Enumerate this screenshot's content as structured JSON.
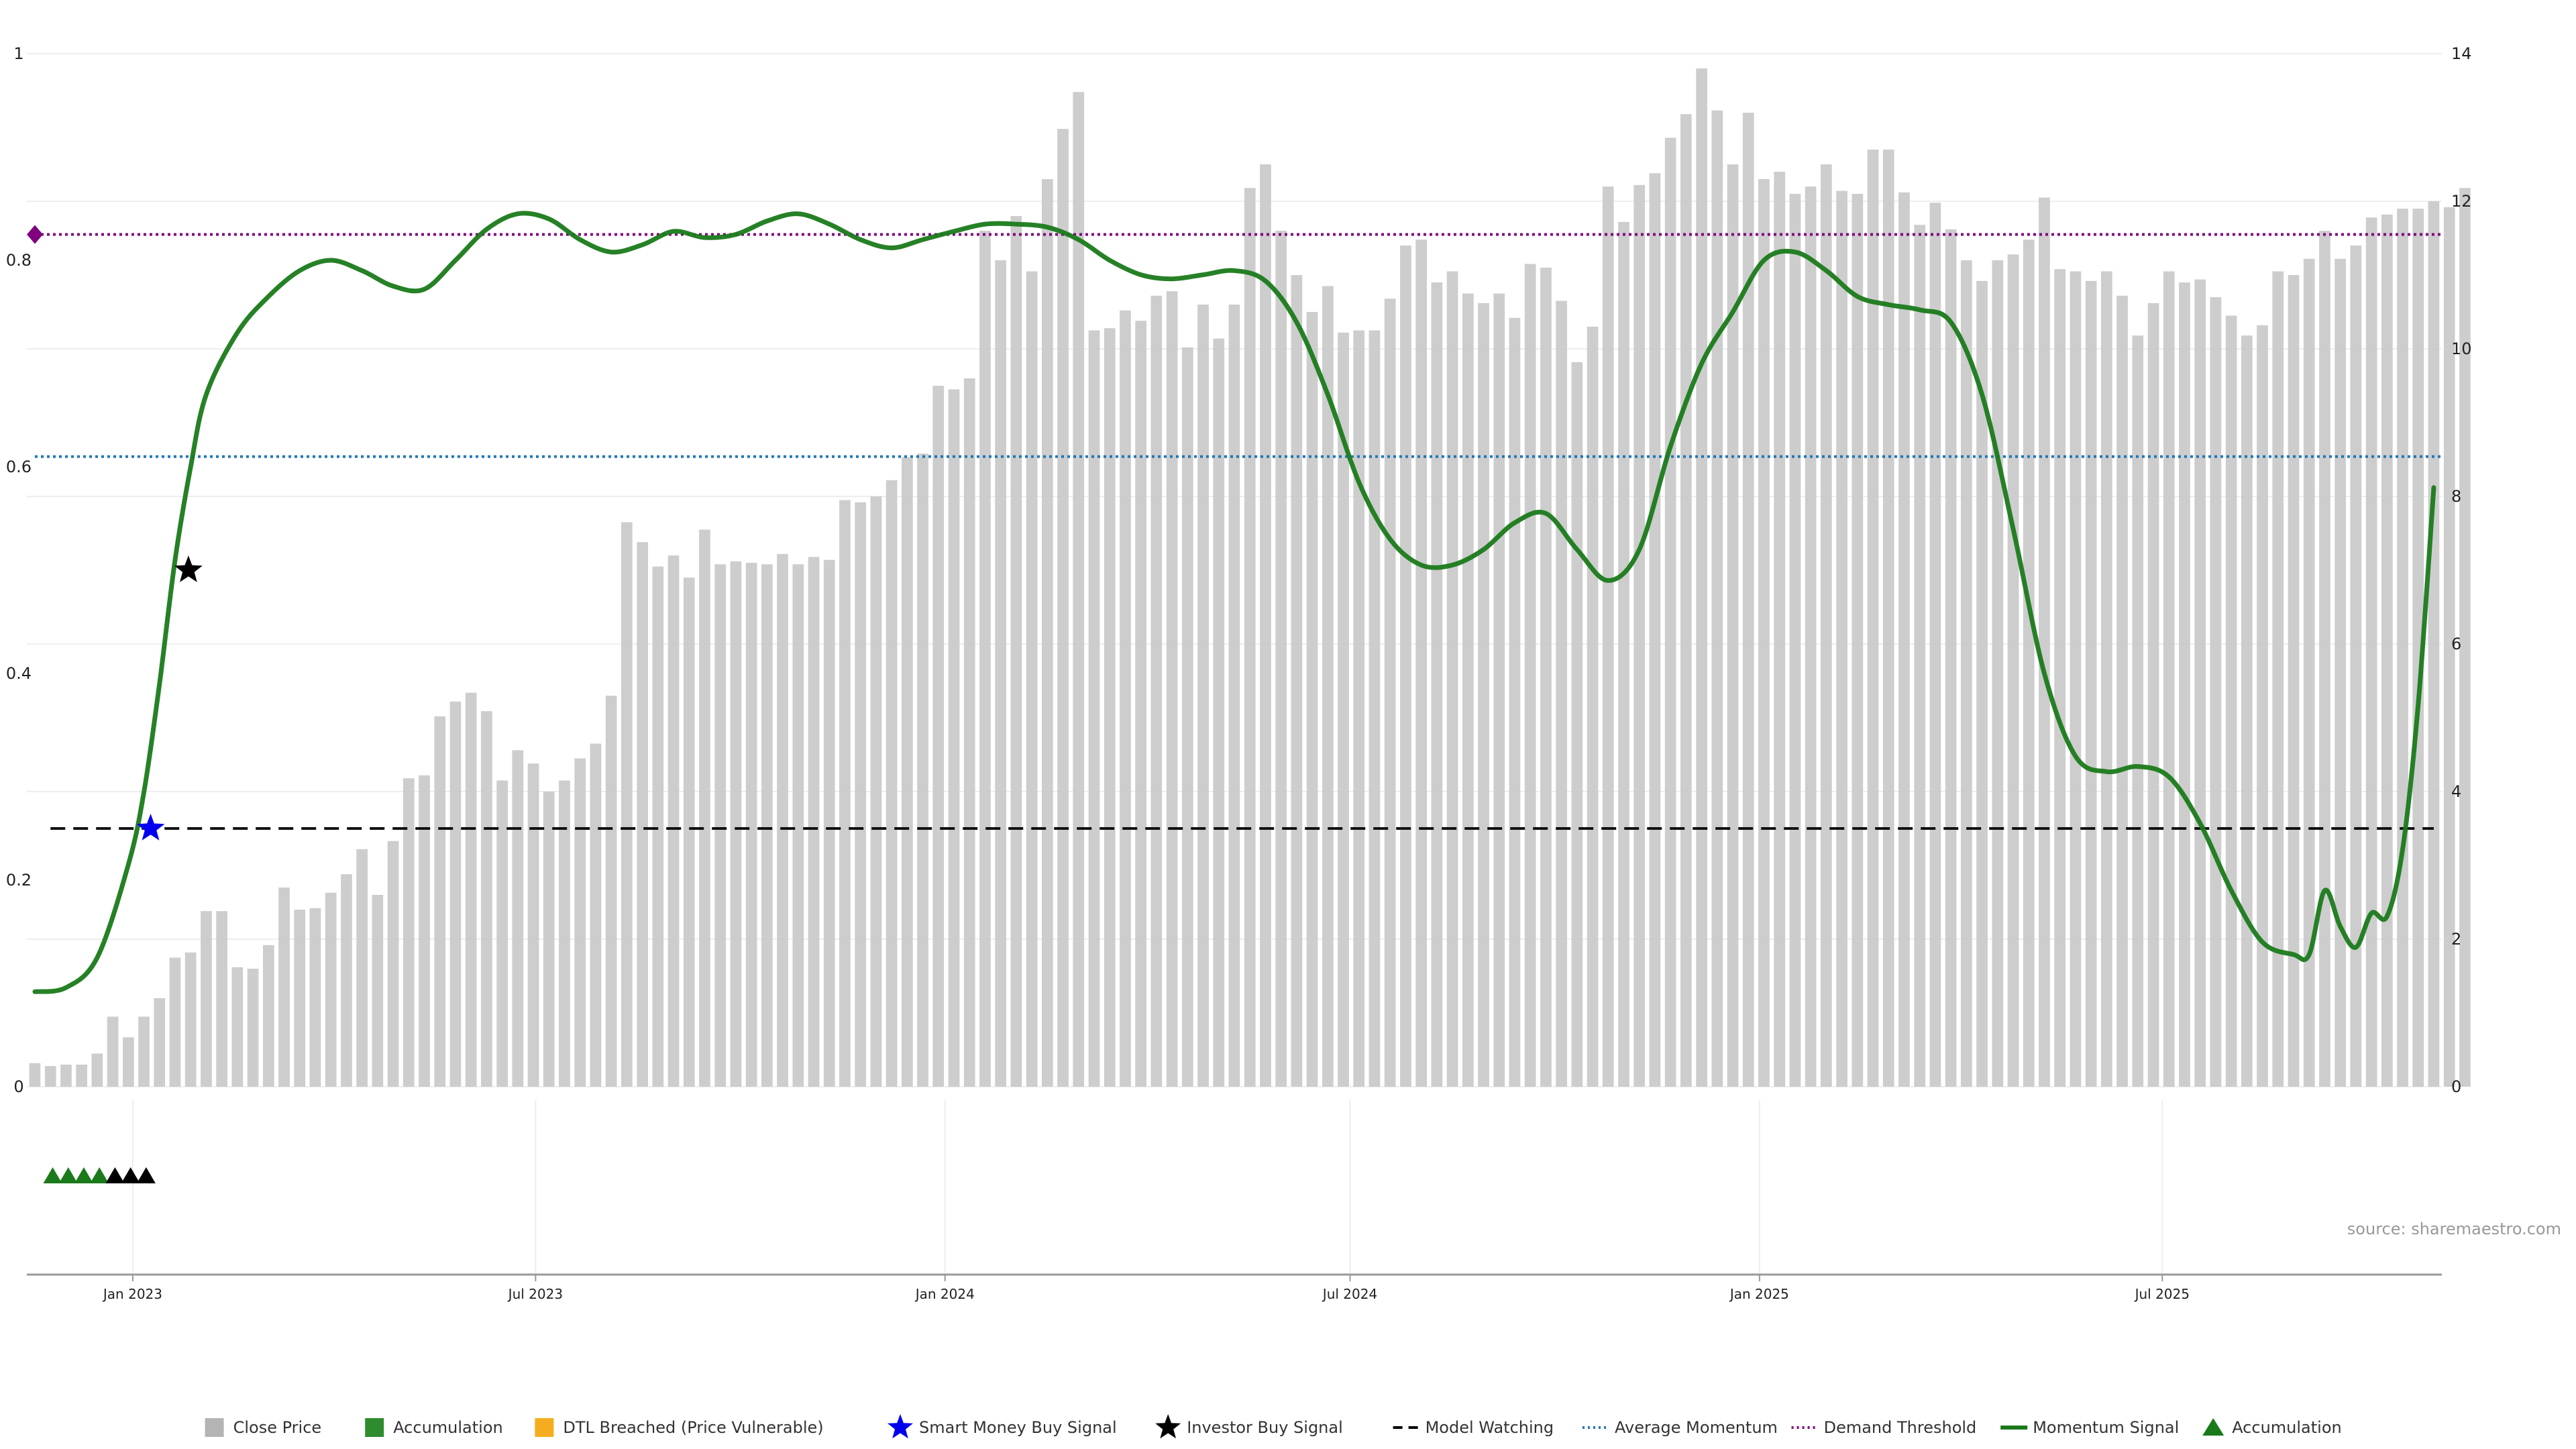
{
  "chart_data": {
    "type": "bar",
    "source_note": "source: sharemaestro.com",
    "left_axis": {
      "ylim": [
        0,
        1
      ],
      "ticks": [
        "0",
        "0.2",
        "0.4",
        "0.6",
        "0.8",
        "1"
      ],
      "tick_values": [
        0,
        0.2,
        0.4,
        0.6,
        0.8,
        1
      ]
    },
    "right_axis": {
      "ylim": [
        0,
        14
      ],
      "ticks": [
        "0",
        "2",
        "4",
        "6",
        "8",
        "10",
        "12",
        "14"
      ],
      "tick_values": [
        0,
        2,
        4,
        6,
        8,
        10,
        12,
        14
      ]
    },
    "x_axis": {
      "start": "2022-11-18",
      "end": "2025-10-31",
      "ticks": [
        {
          "label": "Jan 2023",
          "date": "2023-01-01"
        },
        {
          "label": "Jul 2023",
          "date": "2023-07-01"
        },
        {
          "label": "Jan 2024",
          "date": "2024-01-01"
        },
        {
          "label": "Jul 2024",
          "date": "2024-07-01"
        },
        {
          "label": "Jan 2025",
          "date": "2025-01-01"
        },
        {
          "label": "Jul 2025",
          "date": "2025-07-01"
        }
      ]
    },
    "bar_colors": {
      "gray": "#c8c8c8",
      "green": "#2e8b2e",
      "orange": "#ffd280"
    },
    "close_price": {
      "start_date": "2022-11-18",
      "interval_days": 7,
      "values": [
        0.32,
        0.28,
        0.3,
        0.3,
        0.45,
        0.95,
        0.67,
        0.95,
        1.2,
        1.75,
        1.82,
        2.38,
        2.38,
        1.62,
        1.6,
        1.92,
        2.7,
        2.4,
        2.42,
        2.63,
        2.88,
        3.22,
        2.6,
        3.33,
        4.18,
        4.22,
        5.02,
        5.22,
        5.34,
        5.09,
        4.15,
        4.56,
        4.38,
        4.0,
        4.15,
        4.45,
        4.65,
        5.3,
        7.65,
        7.38,
        7.05,
        7.2,
        6.9,
        7.55,
        7.08,
        7.12,
        7.1,
        7.08,
        7.22,
        7.08,
        7.18,
        7.14,
        7.95,
        7.92,
        8.0,
        8.22,
        8.53,
        8.58,
        9.5,
        9.45,
        9.6,
        11.6,
        11.2,
        11.8,
        11.05,
        12.3,
        12.98,
        13.48,
        10.25,
        10.28,
        10.52,
        10.38,
        10.72,
        10.78,
        10.02,
        10.6,
        10.14,
        10.6,
        12.18,
        12.5,
        11.6,
        11.0,
        10.5,
        10.85,
        10.22,
        10.25,
        10.25,
        10.68,
        11.4,
        11.48,
        10.9,
        11.05,
        10.75,
        10.62,
        10.75,
        10.42,
        11.15,
        11.1,
        10.65,
        9.82,
        10.3,
        12.2,
        11.72,
        12.22,
        12.38,
        12.86,
        13.18,
        13.8,
        13.23,
        12.5,
        13.2,
        12.3,
        12.4,
        12.1,
        12.2,
        12.5,
        12.14,
        12.1,
        12.7,
        12.7,
        12.12,
        11.68,
        11.98,
        11.62,
        11.2,
        10.92,
        11.2,
        11.28,
        11.48,
        12.05,
        11.08,
        11.05,
        10.92,
        11.05,
        10.72,
        10.18,
        10.62,
        11.05,
        10.9,
        10.94,
        10.7,
        10.45,
        10.18,
        10.32,
        11.05,
        11.0,
        11.22,
        11.6,
        11.22,
        11.4,
        11.78,
        11.82,
        11.9,
        11.9,
        12.0,
        11.92,
        12.18
      ],
      "states": "GGGGGGGGGGGGGGGGGGGGGGGGGGGGGGGGGGGGGGGGGGGGGGGGGGGGGGGGGGGGGGGGGGGGGGGGGGGGGGGGGGGGGGGGGGGGGGGGGGGGGGGGGGGGGGGGGGGGGGGGGGGGGGGGGGGGGGGGGGGGGGGGGGGGGGGGGGGGGGGGGGGGGGG"
    },
    "momentum_signal": {
      "points": [
        [
          "2022-11-18",
          0.092
        ],
        [
          "2022-12-02",
          0.096
        ],
        [
          "2022-12-16",
          0.125
        ],
        [
          "2022-12-30",
          0.215
        ],
        [
          "2023-01-06",
          0.285
        ],
        [
          "2023-01-13",
          0.39
        ],
        [
          "2023-01-20",
          0.51
        ],
        [
          "2023-01-27",
          0.6
        ],
        [
          "2023-02-03",
          0.67
        ],
        [
          "2023-02-17",
          0.73
        ],
        [
          "2023-03-03",
          0.765
        ],
        [
          "2023-03-17",
          0.79
        ],
        [
          "2023-03-31",
          0.8
        ],
        [
          "2023-04-14",
          0.79
        ],
        [
          "2023-04-28",
          0.775
        ],
        [
          "2023-05-12",
          0.772
        ],
        [
          "2023-05-26",
          0.8
        ],
        [
          "2023-06-09",
          0.83
        ],
        [
          "2023-06-23",
          0.845
        ],
        [
          "2023-07-07",
          0.84
        ],
        [
          "2023-07-21",
          0.82
        ],
        [
          "2023-08-04",
          0.808
        ],
        [
          "2023-08-18",
          0.815
        ],
        [
          "2023-09-01",
          0.828
        ],
        [
          "2023-09-15",
          0.822
        ],
        [
          "2023-09-29",
          0.825
        ],
        [
          "2023-10-13",
          0.838
        ],
        [
          "2023-10-27",
          0.845
        ],
        [
          "2023-11-10",
          0.835
        ],
        [
          "2023-11-24",
          0.82
        ],
        [
          "2023-12-08",
          0.812
        ],
        [
          "2023-12-22",
          0.82
        ],
        [
          "2024-01-05",
          0.828
        ],
        [
          "2024-01-19",
          0.835
        ],
        [
          "2024-02-02",
          0.835
        ],
        [
          "2024-02-16",
          0.832
        ],
        [
          "2024-03-01",
          0.82
        ],
        [
          "2024-03-15",
          0.8
        ],
        [
          "2024-03-29",
          0.786
        ],
        [
          "2024-04-12",
          0.782
        ],
        [
          "2024-04-26",
          0.786
        ],
        [
          "2024-05-10",
          0.79
        ],
        [
          "2024-05-24",
          0.78
        ],
        [
          "2024-06-07",
          0.74
        ],
        [
          "2024-06-21",
          0.67
        ],
        [
          "2024-07-05",
          0.585
        ],
        [
          "2024-07-19",
          0.53
        ],
        [
          "2024-08-02",
          0.505
        ],
        [
          "2024-08-16",
          0.505
        ],
        [
          "2024-08-30",
          0.52
        ],
        [
          "2024-09-13",
          0.546
        ],
        [
          "2024-09-27",
          0.555
        ],
        [
          "2024-10-11",
          0.52
        ],
        [
          "2024-10-25",
          0.49
        ],
        [
          "2024-11-08",
          0.52
        ],
        [
          "2024-11-22",
          0.62
        ],
        [
          "2024-12-06",
          0.7
        ],
        [
          "2024-12-20",
          0.75
        ],
        [
          "2025-01-03",
          0.8
        ],
        [
          "2025-01-17",
          0.808
        ],
        [
          "2025-01-31",
          0.79
        ],
        [
          "2025-02-14",
          0.765
        ],
        [
          "2025-02-28",
          0.757
        ],
        [
          "2025-03-14",
          0.752
        ],
        [
          "2025-03-28",
          0.74
        ],
        [
          "2025-04-11",
          0.67
        ],
        [
          "2025-04-25",
          0.54
        ],
        [
          "2025-05-09",
          0.4
        ],
        [
          "2025-05-23",
          0.32
        ],
        [
          "2025-06-06",
          0.305
        ],
        [
          "2025-06-20",
          0.31
        ],
        [
          "2025-07-04",
          0.3
        ],
        [
          "2025-07-18",
          0.255
        ],
        [
          "2025-08-01",
          0.19
        ],
        [
          "2025-08-15",
          0.14
        ],
        [
          "2025-08-29",
          0.128
        ],
        [
          "2025-09-05",
          0.128
        ],
        [
          "2025-09-12",
          0.19
        ],
        [
          "2025-09-19",
          0.155
        ],
        [
          "2025-09-26",
          0.135
        ],
        [
          "2025-10-03",
          0.168
        ],
        [
          "2025-10-10",
          0.165
        ],
        [
          "2025-10-17",
          0.23
        ],
        [
          "2025-10-24",
          0.37
        ],
        [
          "2025-10-31",
          0.58
        ]
      ]
    },
    "model_watching": {
      "value": 0.25,
      "start": "2022-11-25",
      "end": "2025-10-31"
    },
    "average_momentum": {
      "value": 0.61
    },
    "demand_threshold": {
      "value": 0.825
    },
    "smart_money_buy_signal": {
      "date": "2023-01-09",
      "value": 0.25
    },
    "investor_buy_signal": {
      "date": "2023-01-26",
      "value": 0.5
    },
    "accumulation_markers": [
      {
        "date": "2022-11-26",
        "color": "green"
      },
      {
        "date": "2022-12-03",
        "color": "green"
      },
      {
        "date": "2022-12-10",
        "color": "green"
      },
      {
        "date": "2022-12-17",
        "color": "green"
      },
      {
        "date": "2022-12-24",
        "color": "black"
      },
      {
        "date": "2022-12-31",
        "color": "black"
      },
      {
        "date": "2023-01-07",
        "color": "black"
      }
    ],
    "legend": [
      {
        "label": "Close Price",
        "kind": "square",
        "color": "#b4b4b4"
      },
      {
        "label": "Accumulation",
        "kind": "square",
        "color": "#2e8b2e"
      },
      {
        "label": "DTL Breached (Price Vulnerable)",
        "kind": "square",
        "color": "#f5ac1e"
      },
      {
        "label": "Smart Money Buy Signal",
        "kind": "star",
        "color": "#0000ee"
      },
      {
        "label": "Investor Buy Signal",
        "kind": "star",
        "color": "#000000"
      },
      {
        "label": "Model Watching",
        "kind": "dash",
        "color": "#000000"
      },
      {
        "label": "Average Momentum",
        "kind": "dot",
        "color": "#1f77b4"
      },
      {
        "label": "Demand Threshold",
        "kind": "dot",
        "color": "#800080"
      },
      {
        "label": "Momentum Signal",
        "kind": "line",
        "color": "#1a7a1a"
      },
      {
        "label": "Accumulation",
        "kind": "triangle",
        "color": "#1a7a1a"
      }
    ]
  }
}
